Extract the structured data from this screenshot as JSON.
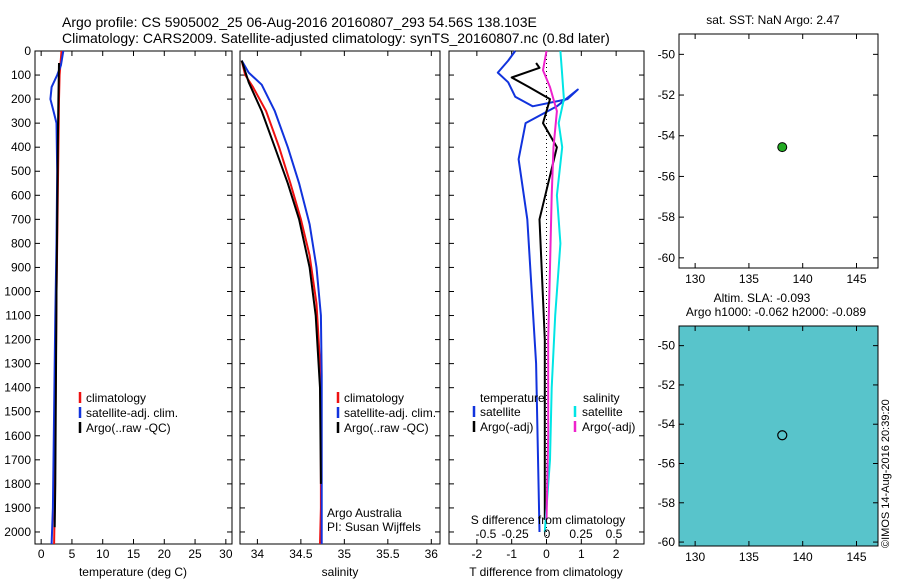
{
  "title_line1": "Argo profile: CS 5905002_25 06-Aug-2016 20160807_293 54.56S 138.103E",
  "title_line2": "Climatology: CARS2009. Satellite-adjusted climatology: synTS_20160807.nc (0.8d later)",
  "chart_data": [
    {
      "type": "line",
      "name": "temperature-profile",
      "xlabel": "temperature (deg C)",
      "xlim": [
        -1,
        31
      ],
      "xticks": [
        0,
        5,
        10,
        15,
        20,
        25,
        30
      ],
      "ylim": [
        0,
        2050
      ],
      "yticks": [
        0,
        100,
        200,
        300,
        400,
        500,
        600,
        700,
        800,
        900,
        1000,
        1100,
        1200,
        1300,
        1400,
        1500,
        1600,
        1700,
        1800,
        1900,
        2000
      ],
      "ytick_labels": [
        "0",
        "100",
        "200",
        "300",
        "400",
        "500",
        "600",
        "700",
        "800",
        "900",
        "1000",
        "1100",
        "1200",
        "1300",
        "1400",
        "1500",
        "1600",
        "1700",
        "1800",
        "1900",
        "2000"
      ],
      "legend": [
        "climatology",
        "satellite-adj. clim.",
        "Argo(..raw -QC)"
      ],
      "series": [
        {
          "name": "climatology",
          "color": "#ee1111",
          "x": [
            3.3,
            3.0,
            2.9,
            2.8,
            2.7,
            2.6,
            2.5,
            2.4,
            2.3,
            2.2,
            2.1
          ],
          "y": [
            0,
            100,
            200,
            400,
            600,
            800,
            1000,
            1300,
            1600,
            1900,
            2050
          ]
        },
        {
          "name": "satellite-adj. clim.",
          "color": "#1133dd",
          "x": [
            3.6,
            3.2,
            2.6,
            1.7,
            1.5,
            2.0,
            2.5,
            2.6,
            2.5,
            2.3,
            2.1,
            1.9,
            1.7
          ],
          "y": [
            0,
            60,
            100,
            150,
            200,
            250,
            300,
            500,
            800,
            1100,
            1500,
            1900,
            2050
          ]
        },
        {
          "name": "Argo(..raw -QC)",
          "color": "#000000",
          "x": [
            2.9,
            2.8,
            2.7,
            2.6,
            2.5,
            2.4,
            2.3,
            2.2
          ],
          "y": [
            50,
            200,
            400,
            700,
            1000,
            1400,
            1800,
            1980
          ]
        }
      ]
    },
    {
      "type": "line",
      "name": "salinity-profile",
      "xlabel": "salinity",
      "xlim": [
        33.8,
        36.1
      ],
      "xticks": [
        34,
        34.5,
        35,
        35.5,
        36
      ],
      "xtick_labels": [
        "34",
        "34.5",
        "35",
        "35.5",
        "36"
      ],
      "ylim": [
        0,
        2050
      ],
      "legend": [
        "climatology",
        "satellite-adj. clim.",
        "Argo(..raw -QC)"
      ],
      "annotations": [
        "Argo Australia",
        "PI: Susan Wijffels"
      ],
      "series": [
        {
          "name": "climatology",
          "color": "#ee1111",
          "x": [
            33.82,
            33.86,
            33.95,
            34.1,
            34.25,
            34.38,
            34.5,
            34.6,
            34.68,
            34.72,
            34.73,
            34.73,
            34.72
          ],
          "y": [
            40,
            100,
            150,
            250,
            400,
            550,
            700,
            850,
            1050,
            1300,
            1600,
            1900,
            2050
          ]
        },
        {
          "name": "satellite-adj. clim.",
          "color": "#1133dd",
          "x": [
            33.82,
            33.9,
            34.05,
            34.2,
            34.35,
            34.48,
            34.6,
            34.68,
            34.73,
            34.74,
            34.74,
            34.74
          ],
          "y": [
            40,
            90,
            140,
            250,
            400,
            550,
            720,
            900,
            1100,
            1350,
            1700,
            2050
          ]
        },
        {
          "name": "Argo(..raw -QC)",
          "color": "#000000",
          "x": [
            33.82,
            33.9,
            34.05,
            34.2,
            34.35,
            34.48,
            34.6,
            34.67,
            34.72,
            34.73
          ],
          "y": [
            40,
            130,
            250,
            400,
            550,
            700,
            900,
            1100,
            1400,
            1800
          ]
        }
      ]
    },
    {
      "type": "line",
      "name": "difference-profile",
      "xlabel": "T difference from climatology",
      "xlabel_top": "S difference from climatology",
      "xlim": [
        -2.8,
        2.8
      ],
      "xticks": [
        -2,
        -1,
        0,
        1,
        2
      ],
      "xtick_labels": [
        "-2",
        "-1",
        "0",
        "1",
        "2"
      ],
      "sticks_labels": [
        "-0.5",
        "-0.25",
        "0",
        "0.25",
        "0.5"
      ],
      "ylim": [
        0,
        2050
      ],
      "legend_left_header": "temperature",
      "legend_right_header": "salinity",
      "legend_left": [
        "satellite",
        "Argo(-adj)"
      ],
      "legend_right": [
        "satellite",
        "Argo(-adj)"
      ],
      "series": [
        {
          "name": "temperature satellite",
          "color": "#1133dd",
          "x": [
            -0.9,
            -1.1,
            -1.4,
            -1.1,
            -0.9,
            -0.4,
            0.6,
            0.9,
            0.3,
            -0.6,
            -0.8,
            -0.55,
            -0.3,
            -0.2
          ],
          "y": [
            0,
            40,
            90,
            130,
            190,
            230,
            200,
            160,
            230,
            300,
            450,
            700,
            1300,
            2000
          ]
        },
        {
          "name": "temperature Argo(-adj)",
          "color": "#000000",
          "x": [
            -0.3,
            -0.2,
            -1.0,
            -0.5,
            0.1,
            -0.1,
            0.3,
            -0.2,
            -0.05,
            -0.05
          ],
          "y": [
            50,
            70,
            110,
            150,
            200,
            300,
            400,
            700,
            1200,
            1950
          ]
        },
        {
          "name": "salinity satellite",
          "color": "#00e5e5",
          "x": [
            0.4,
            0.45,
            0.5,
            0.35,
            0.45,
            0.3,
            0.4,
            0.25,
            0.15,
            0.1,
            0.0,
            -0.05
          ],
          "y": [
            0,
            100,
            200,
            300,
            400,
            600,
            800,
            1100,
            1400,
            1700,
            1900,
            2000
          ]
        },
        {
          "name": "salinity Argo(-adj)",
          "color": "#ee22cc",
          "x": [
            0.0,
            -0.1,
            0.1,
            0.3,
            0.2,
            0.15,
            0.1,
            0.05,
            0.05,
            0.0
          ],
          "y": [
            0,
            80,
            150,
            250,
            400,
            600,
            900,
            1200,
            1600,
            1950
          ]
        }
      ]
    },
    {
      "type": "scatter",
      "name": "sst-map",
      "title": "sat. SST: NaN Argo: 2.47",
      "xlim": [
        128.5,
        147
      ],
      "ylim": [
        -60.5,
        -49
      ],
      "xticks": [
        130,
        135,
        140,
        145
      ],
      "yticks": [
        -50,
        -52,
        -54,
        -56,
        -58,
        -60
      ],
      "points": [
        {
          "x": 138.1,
          "y": -54.56,
          "color": "#22aa22"
        }
      ]
    },
    {
      "type": "heatmap",
      "name": "sla-map",
      "title_line1": "Altim. SLA: -0.093",
      "title_line2": "Argo h1000: -0.062 h2000: -0.089",
      "side_label": "©IMOS 14-Aug-2016 20:39:20",
      "xlim": [
        128.5,
        147
      ],
      "ylim": [
        -60.2,
        -49
      ],
      "xticks": [
        130,
        135,
        140,
        145
      ],
      "yticks": [
        -50,
        -52,
        -54,
        -56,
        -58,
        -60
      ],
      "points": [
        {
          "x": 138.1,
          "y": -54.56
        }
      ]
    }
  ]
}
